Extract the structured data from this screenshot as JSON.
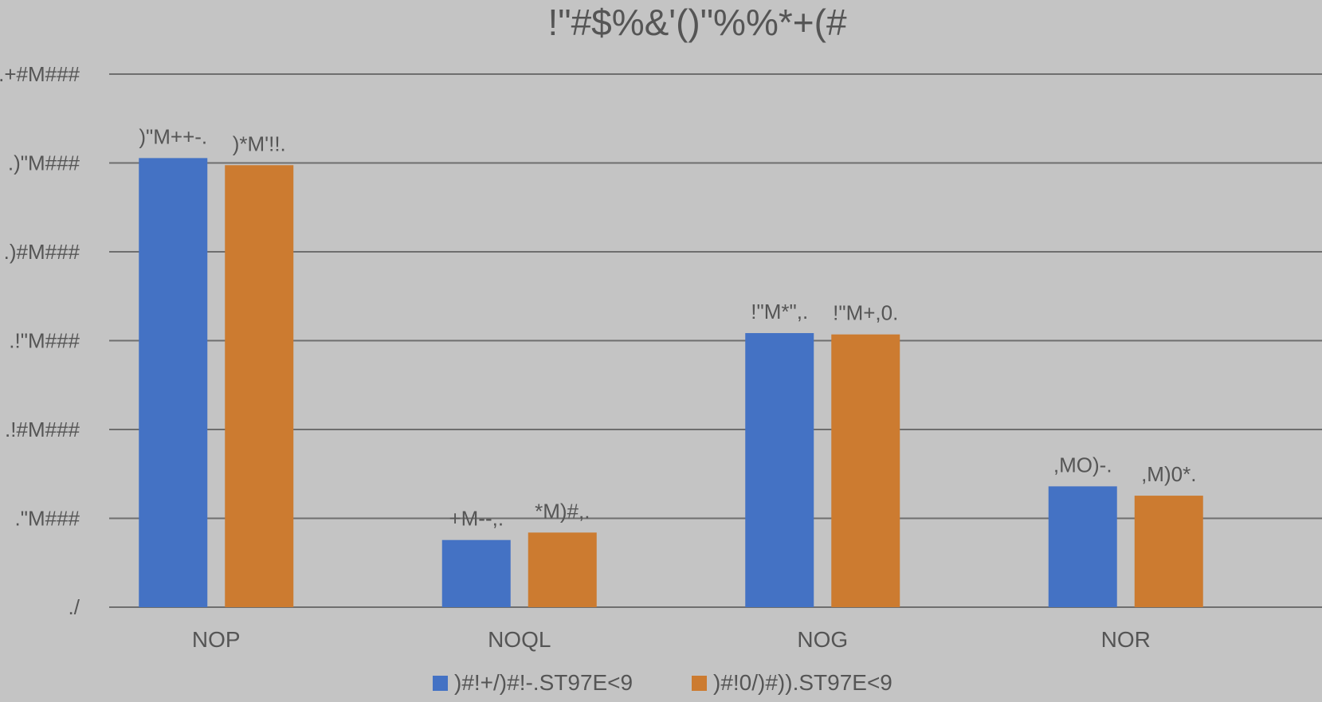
{
  "chart_data": {
    "type": "bar",
    "title": "!\"#$%&'()\"%%*+(#",
    "categories": [
      "NOP",
      "NOQL",
      "NOG",
      "NOR"
    ],
    "series": [
      {
        "name": ")#!+/)#!-.ST97E<9",
        "color": "#4472c4",
        "values": [
          50.55,
          7.56,
          30.85,
          13.6
        ],
        "labels": [
          ")\"M++-.",
          "+M--,.",
          "!\"M*\",.",
          ",MO)-."
        ]
      },
      {
        "name": ")#!0/)#)).ST97E<9",
        "color": "#cc7b30",
        "values": [
          49.75,
          8.4,
          30.7,
          12.55
        ],
        "labels": [
          ")*M'!!.",
          "*M)#,.",
          "!\"M+,0.",
          ",M)0*."
        ]
      }
    ],
    "y_ticks": [
      0,
      10,
      20,
      30,
      40,
      50,
      60
    ],
    "y_tick_labels": [
      "./",
      ".\"M###",
      ".!#M###",
      ".!\"M###",
      ".)#M###",
      ".)\"M###",
      ".+#M###"
    ],
    "ylim": [
      0,
      60
    ],
    "xlabel": "",
    "ylabel": "",
    "grid": true,
    "legend_position": "bottom"
  }
}
